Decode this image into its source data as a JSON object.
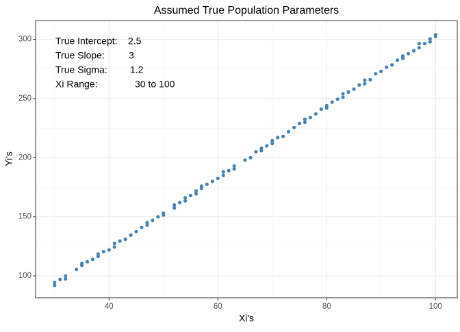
{
  "chart_data": {
    "type": "scatter",
    "title": "Assumed True Population Parameters",
    "x_label": "Xi's",
    "y_label": "Yi's",
    "color": "#4682b4",
    "grid": true,
    "xlim": [
      26.5,
      104
    ],
    "ylim": [
      81.5,
      316
    ],
    "xticks": [
      40,
      60,
      80,
      100
    ],
    "yticks": [
      100,
      150,
      200,
      250,
      300
    ],
    "xminor": [
      30,
      50,
      70,
      90
    ],
    "yminor": [
      125,
      175,
      225,
      275
    ],
    "annotations": [
      {
        "label": "True Intercept:",
        "value": "2.5"
      },
      {
        "label": "True Slope:",
        "value": "3"
      },
      {
        "label": "True Sigma:",
        "value": "1.2"
      },
      {
        "label": "Xi Range:",
        "value": "30 to 100"
      }
    ],
    "x": [
      30,
      30,
      31,
      32,
      32,
      34,
      35,
      35,
      36,
      37,
      38,
      38,
      39,
      40,
      41,
      41,
      42,
      43,
      44,
      45,
      46,
      47,
      47,
      48,
      49,
      50,
      50,
      52,
      52,
      53,
      54,
      54,
      55,
      56,
      56,
      57,
      57,
      58,
      59,
      60,
      61,
      61,
      62,
      63,
      63,
      65,
      66,
      67,
      68,
      68,
      69,
      70,
      70,
      71,
      72,
      73,
      74,
      75,
      76,
      76,
      77,
      78,
      79,
      80,
      80,
      81,
      82,
      83,
      83,
      84,
      85,
      86,
      87,
      87,
      88,
      89,
      90,
      91,
      92,
      93,
      94,
      94,
      95,
      96,
      97,
      97,
      98,
      99,
      99,
      100,
      100
    ],
    "values": [
      92,
      94.5,
      97,
      97.5,
      100,
      105.5,
      109,
      110.5,
      112,
      114,
      116.5,
      118.5,
      120.5,
      122,
      124.5,
      127.5,
      129.5,
      131,
      134.5,
      137.5,
      141,
      143,
      145,
      147,
      150,
      151.5,
      153,
      157.5,
      160,
      162,
      163.5,
      166,
      168,
      169.5,
      172,
      174,
      176,
      177.5,
      180,
      182.5,
      185,
      188,
      189,
      190.5,
      193,
      198,
      200,
      205,
      206,
      208,
      210,
      212,
      214.5,
      217,
      218,
      222,
      225.5,
      229,
      230,
      232.5,
      234,
      237,
      241,
      242,
      244,
      247,
      249.5,
      251,
      254,
      255.5,
      258,
      261.5,
      262.5,
      265.5,
      266,
      271,
      273,
      276.5,
      278.5,
      282.5,
      284,
      286,
      288,
      290.5,
      293,
      296.5,
      296.5,
      298,
      300.5,
      302.5,
      304
    ]
  }
}
